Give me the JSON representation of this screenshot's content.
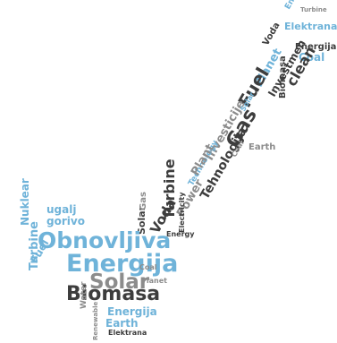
{
  "colors": {
    "blue": "#6fb3d9",
    "dark": "#3d3d3d",
    "gray": "#8c8c8c",
    "light": "#b8b8b8"
  },
  "words": {
    "obnovljiva": "Obnovljiva",
    "energija": "Energija",
    "solar": "Solar",
    "biomasa": "Biomasa",
    "turbine": "Turbine",
    "power": "Power",
    "plant": "Plant",
    "gas": "Gas",
    "fuel": "Fuel",
    "tehnologija": "Tehnologija",
    "investicije": "Investicije",
    "investmen": "Investmen",
    "planet": "Planet",
    "clean": "clean",
    "voda": "Voda",
    "water": "Water",
    "coal": "Coal",
    "elektrana": "Elektrana",
    "earth": "Earth",
    "technology": "Technology",
    "electricity": "Electricity",
    "nuklear": "Nuklear",
    "gorivo": "gorivo",
    "ugalj": "ugalj",
    "energy": "Energy",
    "renewable": "Renewable"
  }
}
